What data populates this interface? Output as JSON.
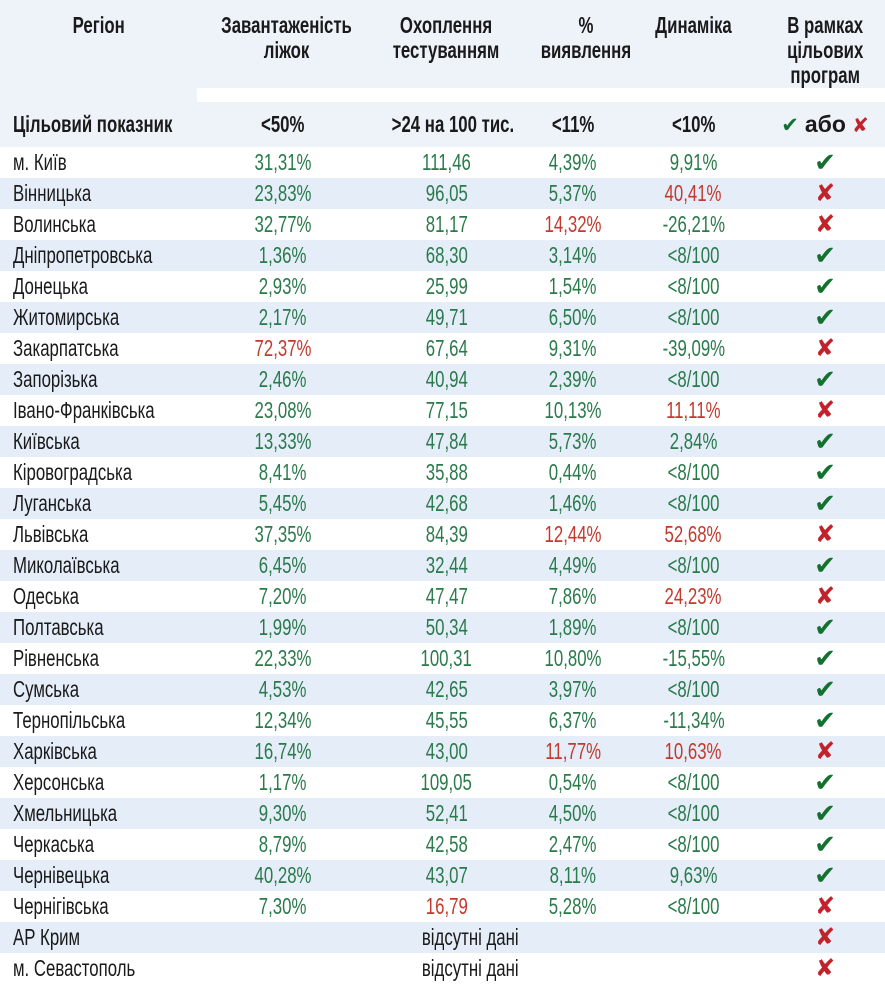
{
  "icons": {
    "pass_icon": "✔",
    "fail_icon": "✘"
  },
  "colors": {
    "header_band": "#eef3fa",
    "row_stripe": "#e4edf8",
    "good_value": "#2a7a4b",
    "bad_value": "#c23a2e",
    "check_green": "#13702f",
    "cross_red": "#c2222a"
  },
  "chart_data": {
    "type": "table",
    "columns": [
      {
        "id": "region",
        "label": "Регіон",
        "lines": [
          "Регіон"
        ]
      },
      {
        "id": "beds",
        "label": "Завантаженість ліжок",
        "lines": [
          "Завантаженість",
          "ліжок"
        ]
      },
      {
        "id": "testing",
        "label": "Охоплення тестуванням",
        "lines": [
          "Охоплення",
          "тестуванням"
        ]
      },
      {
        "id": "detection",
        "label": "% виявлення",
        "lines": [
          "%",
          "виявлення"
        ]
      },
      {
        "id": "dynamics",
        "label": "Динаміка",
        "lines": [
          "Динаміка"
        ]
      },
      {
        "id": "program",
        "label": "В рамках цільових програм",
        "lines": [
          "В рамках",
          "цільових",
          "програм"
        ]
      }
    ],
    "target_row": {
      "label": "Цільовий показник",
      "beds": "<50%",
      "testing": ">24 на 100 тис.",
      "detection": "<11%",
      "dynamics": "<10%",
      "program_or": "або"
    },
    "no_data_label": "відсутні дані",
    "rows": [
      {
        "region": "м. Київ",
        "beds": {
          "value": "31,31%",
          "status": "good"
        },
        "testing": {
          "value": "111,46",
          "status": "good"
        },
        "detection": {
          "value": "4,39%",
          "status": "good"
        },
        "dynamics": {
          "value": "9,91%",
          "status": "good"
        },
        "mark": "pass"
      },
      {
        "region": "Вінницька",
        "beds": {
          "value": "23,83%",
          "status": "good"
        },
        "testing": {
          "value": "96,05",
          "status": "good"
        },
        "detection": {
          "value": "5,37%",
          "status": "good"
        },
        "dynamics": {
          "value": "40,41%",
          "status": "bad"
        },
        "mark": "fail"
      },
      {
        "region": "Волинська",
        "beds": {
          "value": "32,77%",
          "status": "good"
        },
        "testing": {
          "value": "81,17",
          "status": "good"
        },
        "detection": {
          "value": "14,32%",
          "status": "bad"
        },
        "dynamics": {
          "value": "-26,21%",
          "status": "good"
        },
        "mark": "fail"
      },
      {
        "region": "Дніпропетровська",
        "beds": {
          "value": "1,36%",
          "status": "good"
        },
        "testing": {
          "value": "68,30",
          "status": "good"
        },
        "detection": {
          "value": "3,14%",
          "status": "good"
        },
        "dynamics": {
          "value": "<8/100",
          "status": "good"
        },
        "mark": "pass"
      },
      {
        "region": "Донецька",
        "beds": {
          "value": "2,93%",
          "status": "good"
        },
        "testing": {
          "value": "25,99",
          "status": "good"
        },
        "detection": {
          "value": "1,54%",
          "status": "good"
        },
        "dynamics": {
          "value": "<8/100",
          "status": "good"
        },
        "mark": "pass"
      },
      {
        "region": "Житомирська",
        "beds": {
          "value": "2,17%",
          "status": "good"
        },
        "testing": {
          "value": "49,71",
          "status": "good"
        },
        "detection": {
          "value": "6,50%",
          "status": "good"
        },
        "dynamics": {
          "value": "<8/100",
          "status": "good"
        },
        "mark": "pass"
      },
      {
        "region": "Закарпатська",
        "beds": {
          "value": "72,37%",
          "status": "bad"
        },
        "testing": {
          "value": "67,64",
          "status": "good"
        },
        "detection": {
          "value": "9,31%",
          "status": "good"
        },
        "dynamics": {
          "value": "-39,09%",
          "status": "good"
        },
        "mark": "fail"
      },
      {
        "region": "Запорізька",
        "beds": {
          "value": "2,46%",
          "status": "good"
        },
        "testing": {
          "value": "40,94",
          "status": "good"
        },
        "detection": {
          "value": "2,39%",
          "status": "good"
        },
        "dynamics": {
          "value": "<8/100",
          "status": "good"
        },
        "mark": "pass"
      },
      {
        "region": "Івано-Франківська",
        "beds": {
          "value": "23,08%",
          "status": "good"
        },
        "testing": {
          "value": "77,15",
          "status": "good"
        },
        "detection": {
          "value": "10,13%",
          "status": "good"
        },
        "dynamics": {
          "value": "11,11%",
          "status": "bad"
        },
        "mark": "fail"
      },
      {
        "region": "Київська",
        "beds": {
          "value": "13,33%",
          "status": "good"
        },
        "testing": {
          "value": "47,84",
          "status": "good"
        },
        "detection": {
          "value": "5,73%",
          "status": "good"
        },
        "dynamics": {
          "value": "2,84%",
          "status": "good"
        },
        "mark": "pass"
      },
      {
        "region": "Кіровоградська",
        "beds": {
          "value": "8,41%",
          "status": "good"
        },
        "testing": {
          "value": "35,88",
          "status": "good"
        },
        "detection": {
          "value": "0,44%",
          "status": "good"
        },
        "dynamics": {
          "value": "<8/100",
          "status": "good"
        },
        "mark": "pass"
      },
      {
        "region": "Луганська",
        "beds": {
          "value": "5,45%",
          "status": "good"
        },
        "testing": {
          "value": "42,68",
          "status": "good"
        },
        "detection": {
          "value": "1,46%",
          "status": "good"
        },
        "dynamics": {
          "value": "<8/100",
          "status": "good"
        },
        "mark": "pass"
      },
      {
        "region": "Львівська",
        "beds": {
          "value": "37,35%",
          "status": "good"
        },
        "testing": {
          "value": "84,39",
          "status": "good"
        },
        "detection": {
          "value": "12,44%",
          "status": "bad"
        },
        "dynamics": {
          "value": "52,68%",
          "status": "bad"
        },
        "mark": "fail"
      },
      {
        "region": "Миколаївська",
        "beds": {
          "value": "6,45%",
          "status": "good"
        },
        "testing": {
          "value": "32,44",
          "status": "good"
        },
        "detection": {
          "value": "4,49%",
          "status": "good"
        },
        "dynamics": {
          "value": "<8/100",
          "status": "good"
        },
        "mark": "pass"
      },
      {
        "region": "Одеська",
        "beds": {
          "value": "7,20%",
          "status": "good"
        },
        "testing": {
          "value": "47,47",
          "status": "good"
        },
        "detection": {
          "value": "7,86%",
          "status": "good"
        },
        "dynamics": {
          "value": "24,23%",
          "status": "bad"
        },
        "mark": "fail"
      },
      {
        "region": "Полтавська",
        "beds": {
          "value": "1,99%",
          "status": "good"
        },
        "testing": {
          "value": "50,34",
          "status": "good"
        },
        "detection": {
          "value": "1,89%",
          "status": "good"
        },
        "dynamics": {
          "value": "<8/100",
          "status": "good"
        },
        "mark": "pass"
      },
      {
        "region": "Рівненська",
        "beds": {
          "value": "22,33%",
          "status": "good"
        },
        "testing": {
          "value": "100,31",
          "status": "good"
        },
        "detection": {
          "value": "10,80%",
          "status": "good"
        },
        "dynamics": {
          "value": "-15,55%",
          "status": "good"
        },
        "mark": "pass"
      },
      {
        "region": "Сумська",
        "beds": {
          "value": "4,53%",
          "status": "good"
        },
        "testing": {
          "value": "42,65",
          "status": "good"
        },
        "detection": {
          "value": "3,97%",
          "status": "good"
        },
        "dynamics": {
          "value": "<8/100",
          "status": "good"
        },
        "mark": "pass"
      },
      {
        "region": "Тернопільська",
        "beds": {
          "value": "12,34%",
          "status": "good"
        },
        "testing": {
          "value": "45,55",
          "status": "good"
        },
        "detection": {
          "value": "6,37%",
          "status": "good"
        },
        "dynamics": {
          "value": "-11,34%",
          "status": "good"
        },
        "mark": "pass"
      },
      {
        "region": "Харківська",
        "beds": {
          "value": "16,74%",
          "status": "good"
        },
        "testing": {
          "value": "43,00",
          "status": "good"
        },
        "detection": {
          "value": "11,77%",
          "status": "bad"
        },
        "dynamics": {
          "value": "10,63%",
          "status": "bad"
        },
        "mark": "fail"
      },
      {
        "region": "Херсонська",
        "beds": {
          "value": "1,17%",
          "status": "good"
        },
        "testing": {
          "value": "109,05",
          "status": "good"
        },
        "detection": {
          "value": "0,54%",
          "status": "good"
        },
        "dynamics": {
          "value": "<8/100",
          "status": "good"
        },
        "mark": "pass"
      },
      {
        "region": "Хмельницька",
        "beds": {
          "value": "9,30%",
          "status": "good"
        },
        "testing": {
          "value": "52,41",
          "status": "good"
        },
        "detection": {
          "value": "4,50%",
          "status": "good"
        },
        "dynamics": {
          "value": "<8/100",
          "status": "good"
        },
        "mark": "pass"
      },
      {
        "region": "Черкаська",
        "beds": {
          "value": "8,79%",
          "status": "good"
        },
        "testing": {
          "value": "42,58",
          "status": "good"
        },
        "detection": {
          "value": "2,47%",
          "status": "good"
        },
        "dynamics": {
          "value": "<8/100",
          "status": "good"
        },
        "mark": "pass"
      },
      {
        "region": "Чернівецька",
        "beds": {
          "value": "40,28%",
          "status": "good"
        },
        "testing": {
          "value": "43,07",
          "status": "good"
        },
        "detection": {
          "value": "8,11%",
          "status": "good"
        },
        "dynamics": {
          "value": "9,63%",
          "status": "good"
        },
        "mark": "pass"
      },
      {
        "region": "Чернігівська",
        "beds": {
          "value": "7,30%",
          "status": "good"
        },
        "testing": {
          "value": "16,79",
          "status": "bad"
        },
        "detection": {
          "value": "5,28%",
          "status": "good"
        },
        "dynamics": {
          "value": "<8/100",
          "status": "good"
        },
        "mark": "fail"
      },
      {
        "region": "АР Крим",
        "no_data": true,
        "mark": "fail"
      },
      {
        "region": "м. Севастополь",
        "no_data": true,
        "mark": "fail"
      }
    ]
  }
}
